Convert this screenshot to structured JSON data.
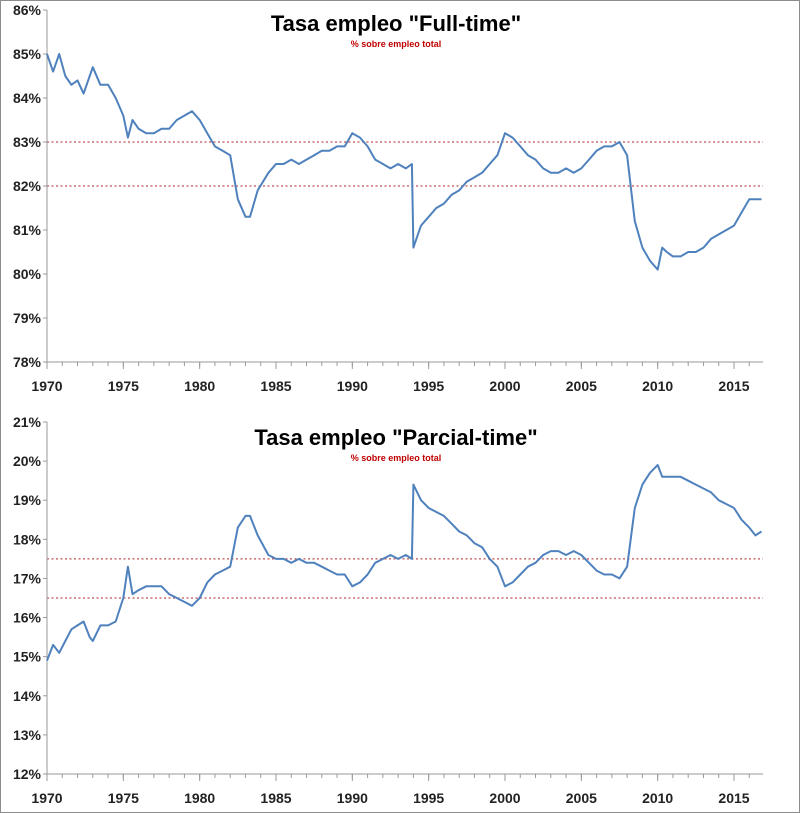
{
  "colors": {
    "line": "#4f81bd",
    "reference": "#c0504d",
    "axis": "#999999"
  },
  "chart_data": [
    {
      "type": "line",
      "title": "Tasa empleo \"Full-time\"",
      "subtitle": "% sobre empleo total",
      "xlabel": "",
      "ylabel": "",
      "xlim": [
        1970,
        2016.9
      ],
      "ylim": [
        78,
        86
      ],
      "x_ticks": [
        "1970",
        "1975",
        "1980",
        "1985",
        "1990",
        "1995",
        "2000",
        "2005",
        "2010",
        "2015"
      ],
      "y_ticks": [
        "78%",
        "79%",
        "80%",
        "81%",
        "82%",
        "83%",
        "84%",
        "85%",
        "86%"
      ],
      "reference_lines": [
        83,
        82
      ],
      "grid": false,
      "series": [
        {
          "x": [
            1970.0,
            1970.4,
            1970.8,
            1971.2,
            1971.6,
            1972.0,
            1972.4,
            1972.8,
            1973.0,
            1973.5,
            1974.0,
            1974.5,
            1975.0,
            1975.3,
            1975.6,
            1976.0,
            1976.5,
            1977.0,
            1977.5,
            1978.0,
            1978.5,
            1979.0,
            1979.5,
            1980.0,
            1980.5,
            1981.0,
            1981.5,
            1982.0,
            1982.5,
            1983.0,
            1983.3,
            1983.8,
            1984.5,
            1985.0,
            1985.5,
            1986.0,
            1986.5,
            1987.0,
            1987.5,
            1988.0,
            1988.5,
            1989.0,
            1989.5,
            1990.0,
            1990.5,
            1991.0,
            1991.5,
            1992.0,
            1992.5,
            1993.0,
            1993.5,
            1993.9,
            1994.0,
            1994.5,
            1995.0,
            1995.5,
            1996.0,
            1996.5,
            1997.0,
            1997.5,
            1998.0,
            1998.5,
            1999.0,
            1999.5,
            2000.0,
            2000.5,
            2001.0,
            2001.5,
            2002.0,
            2002.5,
            2003.0,
            2003.5,
            2004.0,
            2004.5,
            2005.0,
            2005.5,
            2006.0,
            2006.5,
            2007.0,
            2007.5,
            2008.0,
            2008.5,
            2009.0,
            2009.5,
            2010.0,
            2010.3,
            2010.6,
            2011.0,
            2011.5,
            2012.0,
            2012.5,
            2013.0,
            2013.5,
            2014.0,
            2014.5,
            2015.0,
            2015.5,
            2016.0,
            2016.4,
            2016.8
          ],
          "values": [
            85.0,
            84.6,
            85.0,
            84.5,
            84.3,
            84.4,
            84.1,
            84.5,
            84.7,
            84.3,
            84.3,
            84.0,
            83.6,
            83.1,
            83.5,
            83.3,
            83.2,
            83.2,
            83.3,
            83.3,
            83.5,
            83.6,
            83.7,
            83.5,
            83.2,
            82.9,
            82.8,
            82.7,
            81.7,
            81.3,
            81.3,
            81.9,
            82.3,
            82.5,
            82.5,
            82.6,
            82.5,
            82.6,
            82.7,
            82.8,
            82.8,
            82.9,
            82.9,
            83.2,
            83.1,
            82.9,
            82.6,
            82.5,
            82.4,
            82.5,
            82.4,
            82.5,
            80.6,
            81.1,
            81.3,
            81.5,
            81.6,
            81.8,
            81.9,
            82.1,
            82.2,
            82.3,
            82.5,
            82.7,
            83.2,
            83.1,
            82.9,
            82.7,
            82.6,
            82.4,
            82.3,
            82.3,
            82.4,
            82.3,
            82.4,
            82.6,
            82.8,
            82.9,
            82.9,
            83.0,
            82.7,
            81.2,
            80.6,
            80.3,
            80.1,
            80.6,
            80.5,
            80.4,
            80.4,
            80.5,
            80.5,
            80.6,
            80.8,
            80.9,
            81.0,
            81.1,
            81.4,
            81.7,
            81.7,
            81.7
          ]
        }
      ]
    },
    {
      "type": "line",
      "title": "Tasa empleo \"Parcial-time\"",
      "subtitle": "% sobre empleo total",
      "xlabel": "",
      "ylabel": "",
      "xlim": [
        1970,
        2016.9
      ],
      "ylim": [
        12,
        21
      ],
      "x_ticks": [
        "1970",
        "1975",
        "1980",
        "1985",
        "1990",
        "1995",
        "2000",
        "2005",
        "2010",
        "2015"
      ],
      "y_ticks": [
        "12%",
        "13%",
        "14%",
        "15%",
        "16%",
        "17%",
        "18%",
        "19%",
        "20%",
        "21%"
      ],
      "reference_lines": [
        17.5,
        16.5
      ],
      "grid": false,
      "series": [
        {
          "x": [
            1970.0,
            1970.4,
            1970.8,
            1971.2,
            1971.6,
            1972.0,
            1972.4,
            1972.8,
            1973.0,
            1973.5,
            1974.0,
            1974.5,
            1975.0,
            1975.3,
            1975.6,
            1976.0,
            1976.5,
            1977.0,
            1977.5,
            1978.0,
            1978.5,
            1979.0,
            1979.5,
            1980.0,
            1980.5,
            1981.0,
            1981.5,
            1982.0,
            1982.5,
            1983.0,
            1983.3,
            1983.8,
            1984.5,
            1985.0,
            1985.5,
            1986.0,
            1986.5,
            1987.0,
            1987.5,
            1988.0,
            1988.5,
            1989.0,
            1989.5,
            1990.0,
            1990.5,
            1991.0,
            1991.5,
            1992.0,
            1992.5,
            1993.0,
            1993.5,
            1993.9,
            1994.0,
            1994.5,
            1995.0,
            1995.5,
            1996.0,
            1996.5,
            1997.0,
            1997.5,
            1998.0,
            1998.5,
            1999.0,
            1999.5,
            2000.0,
            2000.5,
            2001.0,
            2001.5,
            2002.0,
            2002.5,
            2003.0,
            2003.5,
            2004.0,
            2004.5,
            2005.0,
            2005.5,
            2006.0,
            2006.5,
            2007.0,
            2007.5,
            2008.0,
            2008.5,
            2009.0,
            2009.5,
            2010.0,
            2010.3,
            2010.6,
            2011.0,
            2011.5,
            2012.0,
            2012.5,
            2013.0,
            2013.5,
            2014.0,
            2014.5,
            2015.0,
            2015.5,
            2016.0,
            2016.4,
            2016.8
          ],
          "values": [
            14.9,
            15.3,
            15.1,
            15.4,
            15.7,
            15.8,
            15.9,
            15.5,
            15.4,
            15.8,
            15.8,
            15.9,
            16.5,
            17.3,
            16.6,
            16.7,
            16.8,
            16.8,
            16.8,
            16.6,
            16.5,
            16.4,
            16.3,
            16.5,
            16.9,
            17.1,
            17.2,
            17.3,
            18.3,
            18.6,
            18.6,
            18.1,
            17.6,
            17.5,
            17.5,
            17.4,
            17.5,
            17.4,
            17.4,
            17.3,
            17.2,
            17.1,
            17.1,
            16.8,
            16.9,
            17.1,
            17.4,
            17.5,
            17.6,
            17.5,
            17.6,
            17.5,
            19.4,
            19.0,
            18.8,
            18.7,
            18.6,
            18.4,
            18.2,
            18.1,
            17.9,
            17.8,
            17.5,
            17.3,
            16.8,
            16.9,
            17.1,
            17.3,
            17.4,
            17.6,
            17.7,
            17.7,
            17.6,
            17.7,
            17.6,
            17.4,
            17.2,
            17.1,
            17.1,
            17.0,
            17.3,
            18.8,
            19.4,
            19.7,
            19.9,
            19.6,
            19.6,
            19.6,
            19.6,
            19.5,
            19.4,
            19.3,
            19.2,
            19.0,
            18.9,
            18.8,
            18.5,
            18.3,
            18.1,
            18.2
          ]
        }
      ]
    }
  ]
}
